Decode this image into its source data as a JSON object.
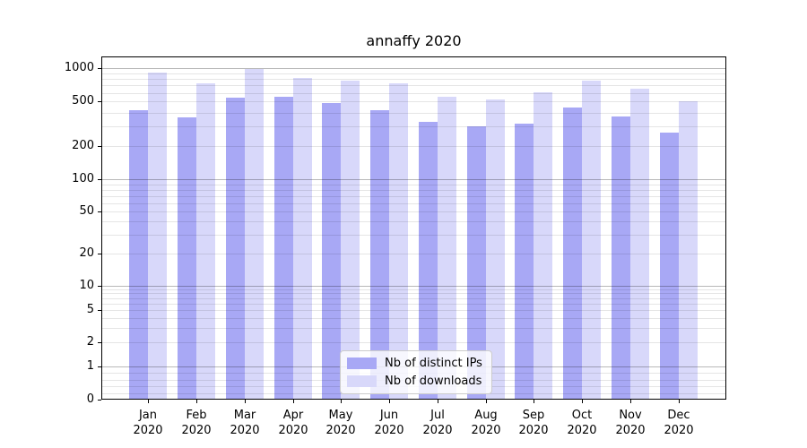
{
  "title": "annaffy 2020",
  "chart_data": {
    "type": "bar",
    "title": "annaffy 2020",
    "categories": [
      "Jan",
      "Feb",
      "Mar",
      "Apr",
      "May",
      "Jun",
      "Jul",
      "Aug",
      "Sep",
      "Oct",
      "Nov",
      "Dec"
    ],
    "year_label": "2020",
    "series": [
      {
        "name": "Nb of distinct IPs",
        "color": "#a8a8f5",
        "values": [
          415,
          360,
          540,
          555,
          485,
          420,
          330,
          300,
          315,
          445,
          370,
          265
        ]
      },
      {
        "name": "Nb of downloads",
        "color": "#d8d8fa",
        "values": [
          905,
          735,
          990,
          820,
          775,
          735,
          550,
          525,
          605,
          775,
          655,
          505
        ]
      }
    ],
    "ylabel": "",
    "xlabel": "",
    "y_axis": {
      "scale": "log-with-zero",
      "tick_values": [
        1000,
        500,
        200,
        100,
        50,
        20,
        10,
        5,
        2,
        1,
        0
      ],
      "tick_labels": [
        "1000",
        "500",
        "200",
        "100",
        "50",
        "20",
        "10",
        "5",
        "2",
        "1",
        "0"
      ],
      "ylim": [
        0,
        1270
      ]
    },
    "grid": "major-and-minor, drawn above bars",
    "legend_position": "lower center"
  },
  "colors": {
    "bar_distinct_ips": "#a8a8f5",
    "bar_downloads": "#d8d8fa",
    "grid_major": "rgba(0,0,0,0.28)",
    "grid_minor": "rgba(0,0,0,0.10)",
    "frame": "#000000",
    "text": "#000000",
    "legend_border": "#cccccc",
    "legend_background": "rgba(255,255,255,0.8)"
  }
}
